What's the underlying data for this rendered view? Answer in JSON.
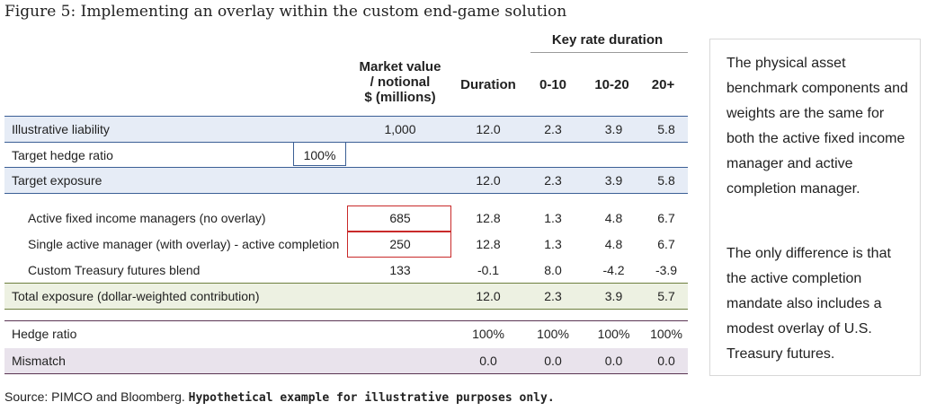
{
  "title": "Figure 5: Implementing an overlay within the custom end-game solution",
  "table": {
    "group_header": "Key rate duration",
    "headers": {
      "market_value": [
        "Market value",
        "/ notional",
        "$ (millions)"
      ],
      "duration": "Duration",
      "krd_0_10": "0-10",
      "krd_10_20": "10-20",
      "krd_20plus": "20+"
    },
    "rows": [
      {
        "label": "Illustrative liability",
        "mv": "1,000",
        "dur": "12.0",
        "a": "2.3",
        "b": "3.9",
        "c": "5.8"
      },
      {
        "label": "Target hedge ratio",
        "ratio": "100%"
      },
      {
        "label": "Target exposure",
        "mv": "",
        "dur": "12.0",
        "a": "2.3",
        "b": "3.9",
        "c": "5.8"
      },
      {
        "label": "Active fixed income managers (no overlay)",
        "mv": "685",
        "dur": "12.8",
        "a": "1.3",
        "b": "4.8",
        "c": "6.7"
      },
      {
        "label": "Single active manager (with overlay) - active completion",
        "mv": "250",
        "dur": "12.8",
        "a": "1.3",
        "b": "4.8",
        "c": "6.7"
      },
      {
        "label": "Custom Treasury futures blend",
        "mv": "133",
        "dur": "-0.1",
        "a": "8.0",
        "b": "-4.2",
        "c": "-3.9"
      },
      {
        "label": "Total exposure (dollar-weighted contribution)",
        "mv": "",
        "dur": "12.0",
        "a": "2.3",
        "b": "3.9",
        "c": "5.7"
      },
      {
        "label": "Hedge ratio",
        "mv": "",
        "dur": "100%",
        "a": "100%",
        "b": "100%",
        "c": "100%"
      },
      {
        "label": "Mismatch",
        "mv": "",
        "dur": "0.0",
        "a": "0.0",
        "b": "0.0",
        "c": "0.0"
      }
    ]
  },
  "source": {
    "prefix": "Source: PIMCO and Bloomberg. ",
    "bold": "Hypothetical example for illustrative purposes only."
  },
  "sidebar": {
    "paragraph1": "The physical asset benchmark components and weights are the same for both the active fixed income manager and active completion manager.",
    "paragraph2": "The only difference is that the active completion mandate also includes a modest overlay of U.S. Treasury futures."
  },
  "colors": {
    "blue": "#3b5f95",
    "green": "#6e7f3e",
    "purple": "#5a3553",
    "highlight_red": "#c92a2a"
  }
}
